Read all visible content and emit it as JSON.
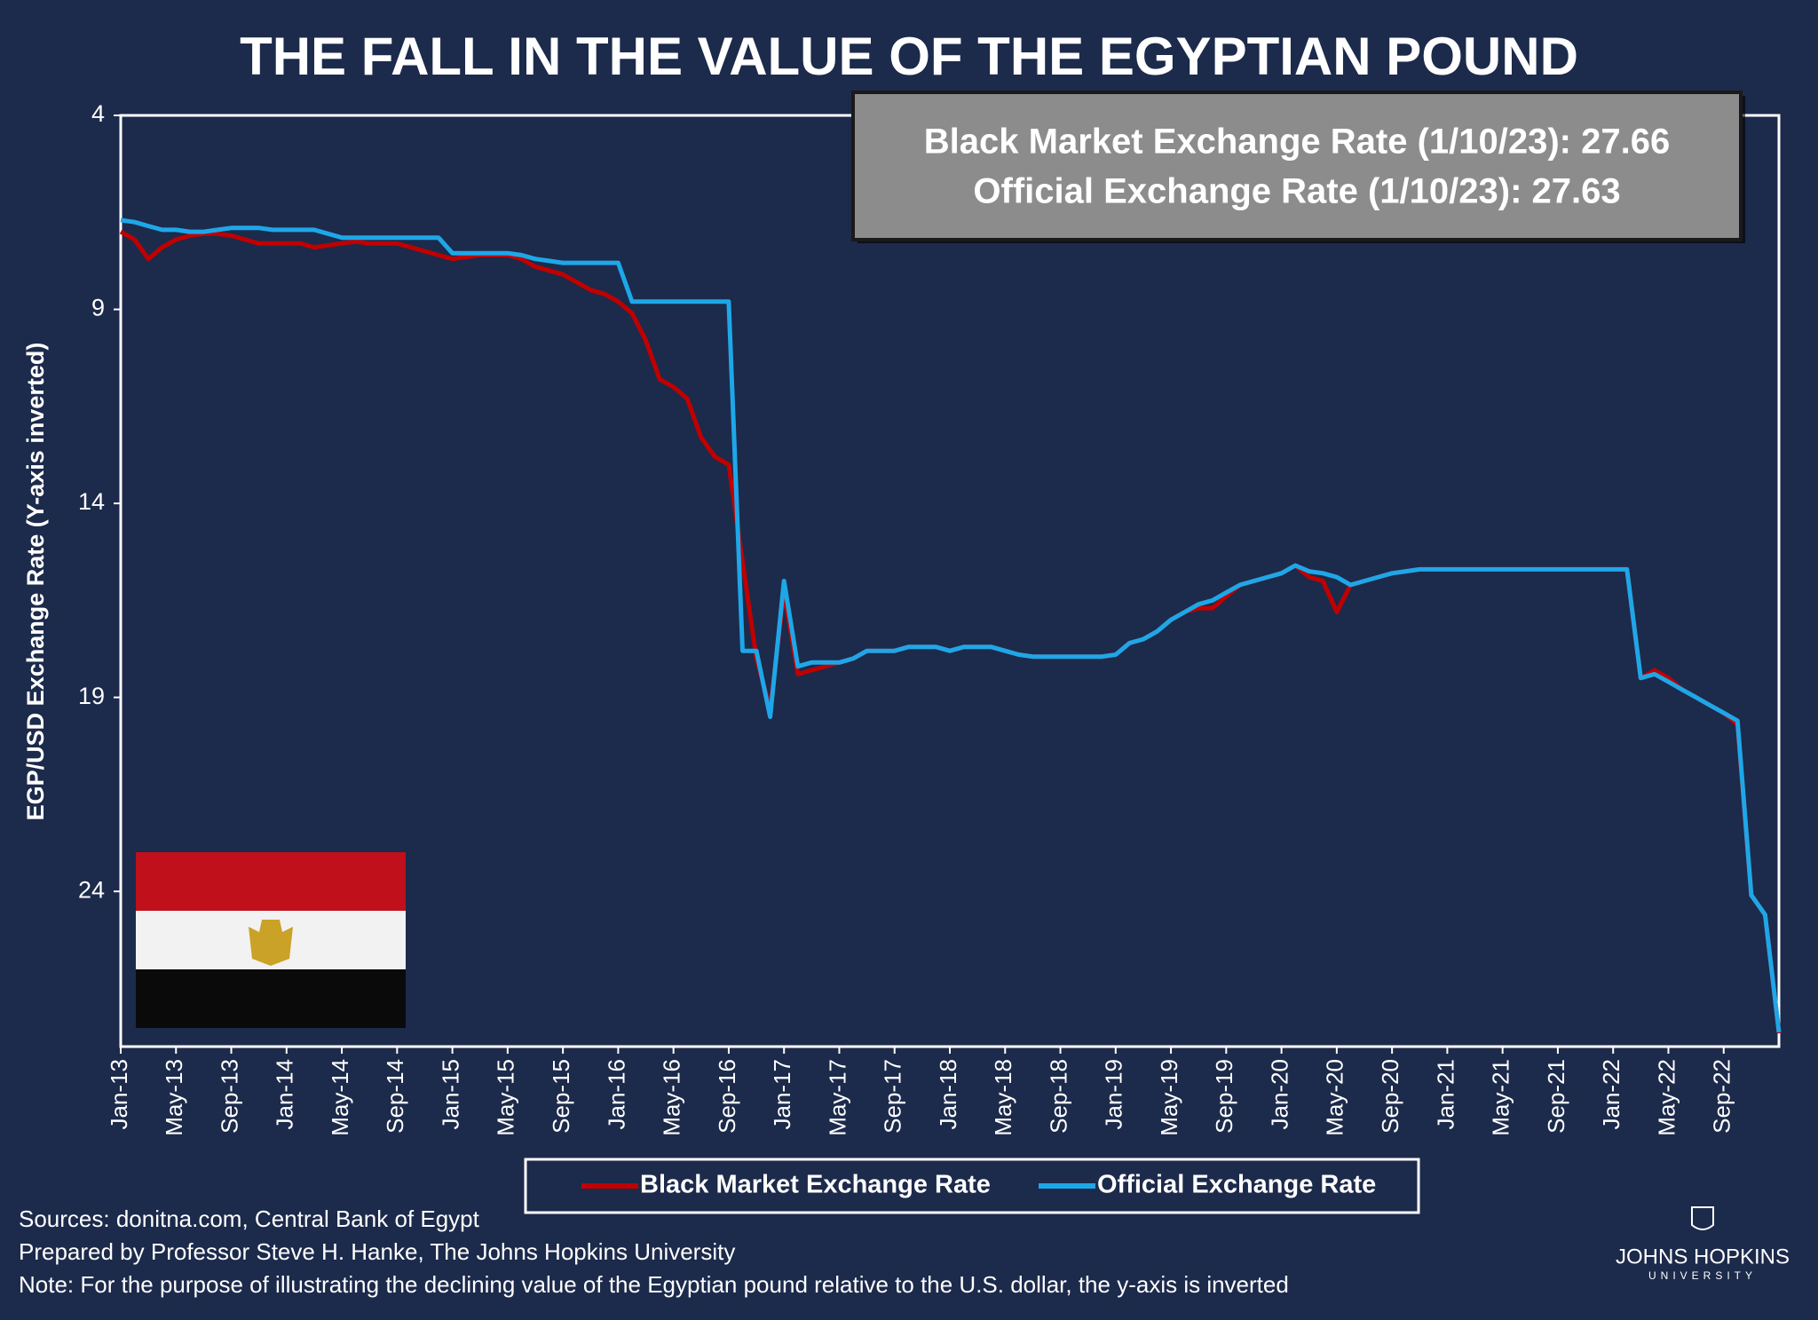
{
  "chart_data": {
    "type": "line",
    "title": "THE FALL IN THE VALUE OF THE EGYPTIAN POUND",
    "y_label": "EGP/USD Exchange Rate (Y-axis inverted)",
    "annotations": [
      "Black Market Exchange Rate (1/10/23): 27.66",
      "Official Exchange Rate (1/10/23): 27.63"
    ],
    "notes": [
      "Sources: donitna.com, Central Bank of Egypt",
      "Prepared by Professor Steve H. Hanke, The Johns Hopkins University",
      "Note: For the purpose of illustrating the declining value of the Egyptian pound relative to the U.S. dollar, the y-axis is inverted"
    ],
    "logo": [
      "JOHNS HOPKINS",
      "UNIVERSITY"
    ],
    "y_inverted": true,
    "ylim": [
      4,
      28
    ],
    "yticks": [
      4,
      9,
      14,
      19,
      24
    ],
    "categories": [
      "Jan-13",
      null,
      null,
      null,
      "May-13",
      null,
      null,
      null,
      "Sep-13",
      null,
      null,
      null,
      "Jan-14",
      null,
      null,
      null,
      "May-14",
      null,
      null,
      null,
      "Sep-14",
      null,
      null,
      null,
      "Jan-15",
      null,
      null,
      null,
      "May-15",
      null,
      null,
      null,
      "Sep-15",
      null,
      null,
      null,
      "Jan-16",
      null,
      null,
      null,
      "May-16",
      null,
      null,
      null,
      "Sep-16",
      null,
      null,
      null,
      "Jan-17",
      null,
      null,
      null,
      "May-17",
      null,
      null,
      null,
      "Sep-17",
      null,
      null,
      null,
      "Jan-18",
      null,
      null,
      null,
      "May-18",
      null,
      null,
      null,
      "Sep-18",
      null,
      null,
      null,
      "Jan-19",
      null,
      null,
      null,
      "May-19",
      null,
      null,
      null,
      "Sep-19",
      null,
      null,
      null,
      "Jan-20",
      null,
      null,
      null,
      "May-20",
      null,
      null,
      null,
      "Sep-20",
      null,
      null,
      null,
      "Jan-21",
      null,
      null,
      null,
      "May-21",
      null,
      null,
      null,
      "Sep-21",
      null,
      null,
      null,
      "Jan-22",
      null,
      null,
      null,
      "May-22",
      null,
      null,
      null,
      "Sep-22",
      null,
      null,
      null,
      null
    ],
    "series": [
      {
        "name": "Black Market Exchange Rate",
        "color": "#c00000",
        "values": [
          7.0,
          7.2,
          7.7,
          7.4,
          7.2,
          7.1,
          7.05,
          7.05,
          7.1,
          7.2,
          7.3,
          7.3,
          7.3,
          7.3,
          7.4,
          7.35,
          7.3,
          7.25,
          7.3,
          7.3,
          7.3,
          7.4,
          7.5,
          7.6,
          7.7,
          7.65,
          7.6,
          7.6,
          7.6,
          7.7,
          7.9,
          8.0,
          8.1,
          8.3,
          8.5,
          8.6,
          8.8,
          9.1,
          9.8,
          10.8,
          11.0,
          11.3,
          12.3,
          12.8,
          13.0,
          15.5,
          18.0,
          19.3,
          16.3,
          18.4,
          18.3,
          18.2,
          18.1,
          18.0,
          17.8,
          17.8,
          17.8,
          17.7,
          17.7,
          17.7,
          17.8,
          17.7,
          17.7,
          17.7,
          17.8,
          17.9,
          17.95,
          17.95,
          17.95,
          17.95,
          17.95,
          17.95,
          17.9,
          17.6,
          17.5,
          17.3,
          17.0,
          16.8,
          16.7,
          16.7,
          16.4,
          16.1,
          16.0,
          15.9,
          15.8,
          15.6,
          15.9,
          16.0,
          16.8,
          16.1,
          16.0,
          15.9,
          15.8,
          15.75,
          15.7,
          15.7,
          15.7,
          15.7,
          15.7,
          15.7,
          15.7,
          15.7,
          15.7,
          15.7,
          15.7,
          15.7,
          15.7,
          15.7,
          15.7,
          15.7,
          18.5,
          18.3,
          18.5,
          18.8,
          19.0,
          19.2,
          19.4,
          19.7,
          24.1,
          24.6,
          27.66
        ]
      },
      {
        "name": "Official Exchange Rate",
        "color": "#1ea7e8",
        "values": [
          6.7,
          6.75,
          6.85,
          6.95,
          6.95,
          7.0,
          7.0,
          6.95,
          6.9,
          6.9,
          6.9,
          6.95,
          6.95,
          6.95,
          6.95,
          7.05,
          7.15,
          7.15,
          7.15,
          7.15,
          7.15,
          7.15,
          7.15,
          7.15,
          7.55,
          7.55,
          7.55,
          7.55,
          7.55,
          7.6,
          7.7,
          7.75,
          7.8,
          7.8,
          7.8,
          7.8,
          7.8,
          8.8,
          8.8,
          8.8,
          8.8,
          8.8,
          8.8,
          8.8,
          8.8,
          17.8,
          17.8,
          19.5,
          16.0,
          18.2,
          18.1,
          18.1,
          18.1,
          18.0,
          17.8,
          17.8,
          17.8,
          17.7,
          17.7,
          17.7,
          17.8,
          17.7,
          17.7,
          17.7,
          17.8,
          17.9,
          17.95,
          17.95,
          17.95,
          17.95,
          17.95,
          17.95,
          17.9,
          17.6,
          17.5,
          17.3,
          17.0,
          16.8,
          16.6,
          16.5,
          16.3,
          16.1,
          16.0,
          15.9,
          15.8,
          15.6,
          15.75,
          15.8,
          15.9,
          16.1,
          16.0,
          15.9,
          15.8,
          15.75,
          15.7,
          15.7,
          15.7,
          15.7,
          15.7,
          15.7,
          15.7,
          15.7,
          15.7,
          15.7,
          15.7,
          15.7,
          15.7,
          15.7,
          15.7,
          15.7,
          18.5,
          18.4,
          18.6,
          18.8,
          19.0,
          19.2,
          19.4,
          19.6,
          24.1,
          24.6,
          27.63
        ]
      }
    ]
  }
}
